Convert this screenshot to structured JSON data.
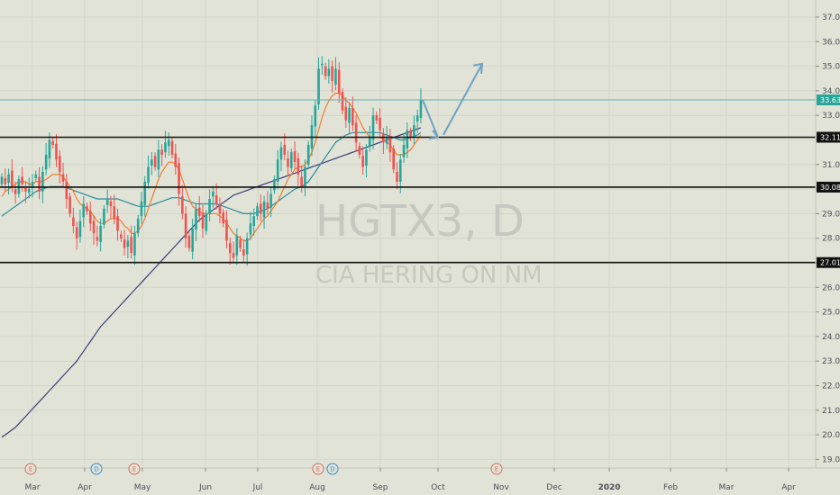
{
  "chart_data": {
    "type": "candlestick",
    "watermark": {
      "symbol": "HGTX3, D",
      "name": "CIA HERING ON NM"
    },
    "y_axis": {
      "range": [
        18.5,
        37.5
      ],
      "ticks": [
        "19.00",
        "20.00",
        "21.00",
        "22.00",
        "23.00",
        "24.00",
        "25.00",
        "26.00",
        "27.00",
        "28.00",
        "29.00",
        "30.00",
        "31.00",
        "32.00",
        "33.00",
        "34.00",
        "35.00",
        "36.00",
        "37.00"
      ]
    },
    "x_axis": {
      "ticks": [
        "Mar",
        "Apr",
        "May",
        "Jun",
        "Jul",
        "Aug",
        "Sep",
        "Oct",
        "Nov",
        "Dec",
        "2020",
        "Feb",
        "Mar",
        "Apr"
      ],
      "bold_ticks": [
        "2020"
      ]
    },
    "horizontal_levels": [
      {
        "value": 32.11,
        "label": "32.11"
      },
      {
        "value": 30.08,
        "label": "30.08"
      },
      {
        "value": 27.01,
        "label": "27.01"
      }
    ],
    "last_price": {
      "value": 33.63,
      "label": "33.63"
    },
    "event_markers": [
      {
        "type": "earnings",
        "label": "E",
        "month": "Mar"
      },
      {
        "type": "dividend",
        "label": "D",
        "month": "Apr"
      },
      {
        "type": "earnings",
        "label": "E",
        "month": "May"
      },
      {
        "type": "earnings",
        "label": "E",
        "month": "Aug"
      },
      {
        "type": "dividend",
        "label": "D",
        "month": "Aug"
      },
      {
        "type": "earnings",
        "label": "E",
        "month": "Nov"
      }
    ],
    "closes": [
      30.5,
      30.2,
      30.6,
      30.1,
      29.8,
      30.4,
      30.2,
      29.9,
      30.0,
      30.3,
      30.6,
      29.9,
      30.7,
      31.4,
      32.0,
      31.8,
      31.2,
      30.7,
      30.3,
      29.6,
      29.0,
      28.5,
      28.0,
      28.7,
      29.4,
      29.1,
      28.6,
      28.2,
      27.9,
      28.5,
      29.2,
      29.6,
      29.3,
      28.8,
      28.3,
      28.0,
      27.6,
      27.9,
      27.4,
      28.2,
      28.8,
      29.5,
      30.3,
      30.9,
      31.2,
      30.9,
      31.6,
      31.4,
      31.9,
      32.0,
      31.4,
      30.9,
      29.8,
      29.0,
      28.0,
      27.6,
      28.4,
      29.2,
      28.9,
      28.4,
      29.0,
      29.6,
      29.9,
      29.4,
      29.0,
      28.6,
      27.9,
      27.4,
      27.2,
      28.1,
      27.6,
      27.3,
      28.0,
      28.6,
      28.9,
      29.3,
      29.0,
      29.5,
      29.2,
      29.8,
      30.4,
      31.2,
      31.7,
      31.4,
      30.9,
      31.5,
      31.1,
      30.6,
      30.1,
      30.9,
      31.8,
      32.6,
      33.4,
      34.9,
      35.1,
      34.6,
      34.9,
      34.4,
      34.9,
      33.9,
      33.2,
      32.8,
      33.3,
      32.6,
      31.9,
      31.4,
      30.9,
      31.6,
      32.1,
      33.0,
      32.8,
      32.4,
      31.9,
      32.1,
      31.5,
      30.8,
      30.3,
      31.2,
      31.8,
      32.4,
      32.1,
      32.6,
      33.0,
      33.63
    ],
    "ma_fast": [
      29.7,
      29.9,
      30.0,
      30.1,
      30.2,
      30.3,
      30.3,
      30.3,
      30.2,
      30.2,
      30.3,
      30.3,
      30.3,
      30.4,
      30.5,
      30.6,
      30.6,
      30.6,
      30.5,
      30.3,
      30.1,
      29.9,
      29.6,
      29.4,
      29.3,
      29.2,
      29.1,
      28.9,
      28.7,
      28.6,
      28.6,
      28.7,
      28.8,
      28.8,
      28.8,
      28.7,
      28.5,
      28.4,
      28.2,
      28.2,
      28.3,
      28.5,
      28.8,
      29.2,
      29.6,
      30.0,
      30.4,
      30.7,
      30.9,
      31.1,
      31.1,
      31.0,
      30.8,
      30.4,
      30.0,
      29.6,
      29.3,
      29.2,
      29.1,
      29.0,
      29.0,
      29.0,
      29.0,
      29.0,
      28.9,
      28.8,
      28.6,
      28.4,
      28.2,
      28.1,
      28.0,
      27.9,
      27.9,
      28.0,
      28.2,
      28.4,
      28.6,
      28.8,
      28.9,
      29.1,
      29.3,
      29.5,
      29.8,
      30.1,
      30.4,
      30.6,
      30.8,
      30.9,
      30.9,
      31.0,
      31.2,
      31.5,
      31.9,
      32.4,
      32.9,
      33.3,
      33.6,
      33.8,
      33.9,
      33.9,
      33.8,
      33.6,
      33.5,
      33.3,
      33.1,
      32.8,
      32.5,
      32.3,
      32.1,
      32.1,
      32.1,
      32.1,
      32.0,
      31.9,
      31.8,
      31.6,
      31.4,
      31.4,
      31.4,
      31.5,
      31.6,
      31.8,
      32.0,
      32.2
    ],
    "ma_slow": [
      28.9,
      29.0,
      29.1,
      29.2,
      29.3,
      29.4,
      29.5,
      29.6,
      29.7,
      29.8,
      29.9,
      29.95,
      30.0,
      30.05,
      30.1,
      30.1,
      30.1,
      30.1,
      30.1,
      30.05,
      30.0,
      29.95,
      29.9,
      29.85,
      29.8,
      29.75,
      29.7,
      29.65,
      29.6,
      29.6,
      29.6,
      29.6,
      29.6,
      29.6,
      29.6,
      29.55,
      29.5,
      29.45,
      29.4,
      29.35,
      29.3,
      29.3,
      29.3,
      29.3,
      29.35,
      29.4,
      29.45,
      29.5,
      29.55,
      29.6,
      29.65,
      29.65,
      29.65,
      29.6,
      29.55,
      29.5,
      29.45,
      29.4,
      29.4,
      29.4,
      29.4,
      29.4,
      29.4,
      29.4,
      29.35,
      29.3,
      29.25,
      29.2,
      29.15,
      29.1,
      29.05,
      29.0,
      29.0,
      29.0,
      29.0,
      29.05,
      29.1,
      29.15,
      29.2,
      29.3,
      29.4,
      29.5,
      29.6,
      29.7,
      29.8,
      29.9,
      30.0,
      30.05,
      30.1,
      30.2,
      30.3,
      30.5,
      30.7,
      30.9,
      31.1,
      31.3,
      31.5,
      31.7,
      31.9,
      32.0,
      32.1,
      32.2,
      32.25,
      32.3,
      32.3,
      32.3,
      32.3,
      32.3,
      32.3,
      32.3,
      32.3,
      32.3,
      32.25,
      32.2,
      32.15,
      32.1,
      32.05,
      32.0,
      32.0,
      32.05,
      32.1,
      32.15,
      32.2,
      32.3
    ],
    "ma_long": [
      19.9,
      20.0,
      20.1,
      20.2,
      20.3,
      20.45,
      20.6,
      20.75,
      20.9,
      21.05,
      21.2,
      21.35,
      21.5,
      21.65,
      21.8,
      21.95,
      22.1,
      22.25,
      22.4,
      22.55,
      22.7,
      22.85,
      23.0,
      23.2,
      23.4,
      23.6,
      23.8,
      24.0,
      24.2,
      24.4,
      24.55,
      24.7,
      24.85,
      25.0,
      25.15,
      25.3,
      25.45,
      25.6,
      25.75,
      25.9,
      26.05,
      26.2,
      26.35,
      26.5,
      26.65,
      26.8,
      26.95,
      27.1,
      27.25,
      27.4,
      27.55,
      27.7,
      27.85,
      28.0,
      28.15,
      28.3,
      28.45,
      28.6,
      28.75,
      28.85,
      28.95,
      29.05,
      29.15,
      29.25,
      29.35,
      29.45,
      29.55,
      29.65,
      29.75,
      29.8,
      29.85,
      29.9,
      29.95,
      30.0,
      30.05,
      30.1,
      30.15,
      30.2,
      30.25,
      30.3,
      30.35,
      30.4,
      30.45,
      30.5,
      30.55,
      30.6,
      30.65,
      30.7,
      30.75,
      30.8,
      30.85,
      30.9,
      30.95,
      31.0,
      31.05,
      31.1,
      31.15,
      31.2,
      31.25,
      31.3,
      31.35,
      31.4,
      31.45,
      31.5,
      31.55,
      31.6,
      31.65,
      31.7,
      31.75,
      31.8,
      31.85,
      31.9,
      31.95,
      32.0,
      32.05,
      32.1,
      32.15,
      32.2,
      32.25,
      32.3,
      32.35,
      32.4,
      32.45,
      32.5
    ],
    "projection": [
      33.63,
      32.1,
      35.1
    ],
    "colors": {
      "up": "#26a69a",
      "down": "#ef5350",
      "ma_fast": "#f57c2b",
      "ma_slow": "#2b8c9c",
      "ma_long": "#3a3f7a",
      "last_price_line": "#5fb0b8",
      "projection": "#6fa2c2",
      "earnings": "#e06b5f",
      "dividend": "#2f8fd6"
    }
  }
}
